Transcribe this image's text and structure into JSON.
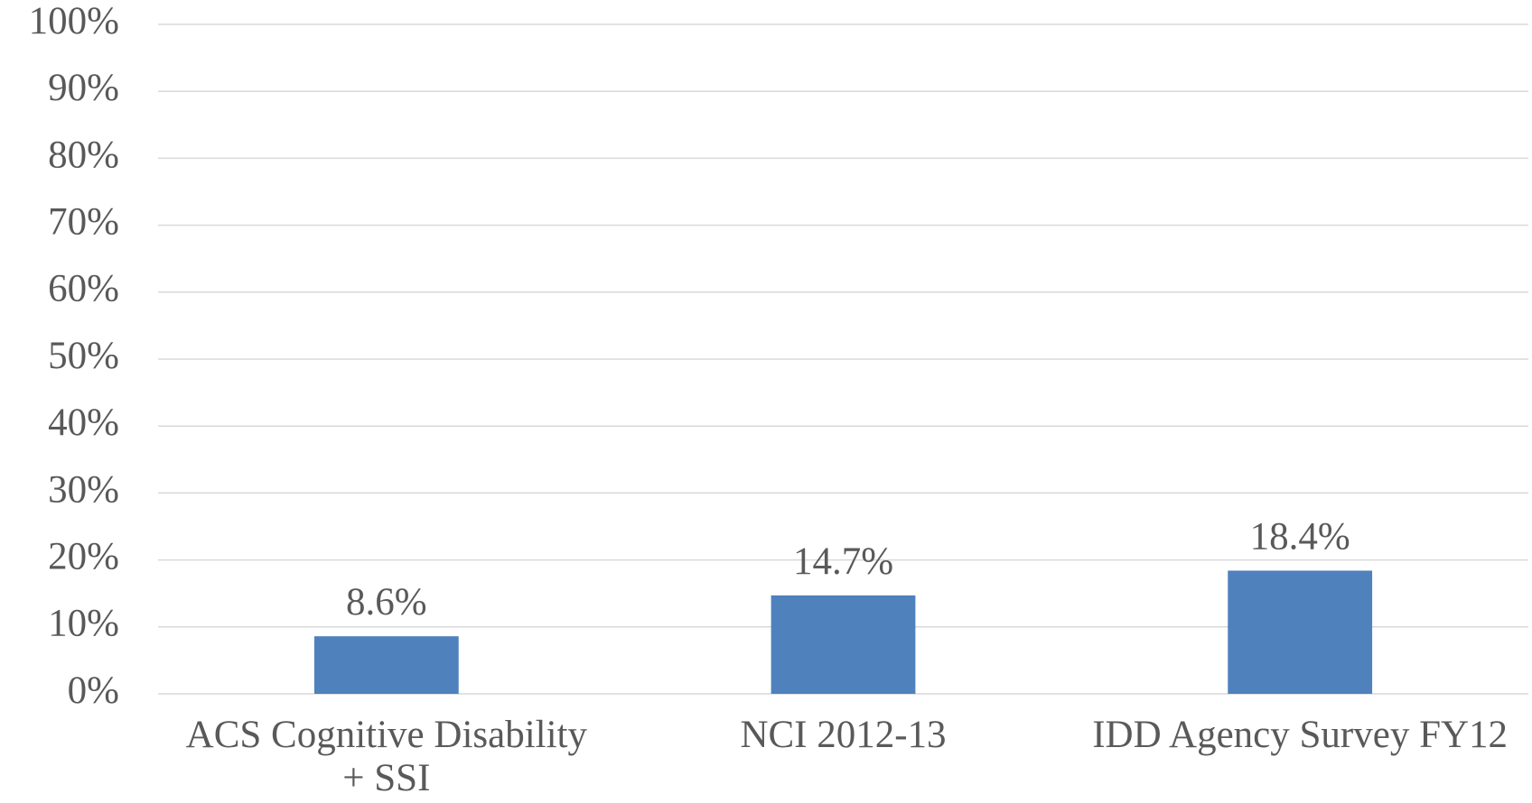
{
  "chart_data": {
    "type": "bar",
    "categories": [
      "ACS Cognitive Disability + SSI",
      "NCI 2012-13",
      "IDD Agency Survey FY12"
    ],
    "values": [
      8.6,
      14.7,
      18.4
    ],
    "value_labels": [
      "8.6%",
      "14.7%",
      "18.4%"
    ],
    "color": "#4f81bd",
    "ylim": [
      0,
      100
    ],
    "yticks": [
      {
        "value": 0,
        "label": "0%"
      },
      {
        "value": 10,
        "label": "10%"
      },
      {
        "value": 20,
        "label": "20%"
      },
      {
        "value": 30,
        "label": "30%"
      },
      {
        "value": 40,
        "label": "40%"
      },
      {
        "value": 50,
        "label": "50%"
      },
      {
        "value": 60,
        "label": "60%"
      },
      {
        "value": 70,
        "label": "70%"
      },
      {
        "value": 80,
        "label": "80%"
      },
      {
        "value": 90,
        "label": "90%"
      },
      {
        "value": 100,
        "label": "100%"
      }
    ],
    "grid": true
  }
}
